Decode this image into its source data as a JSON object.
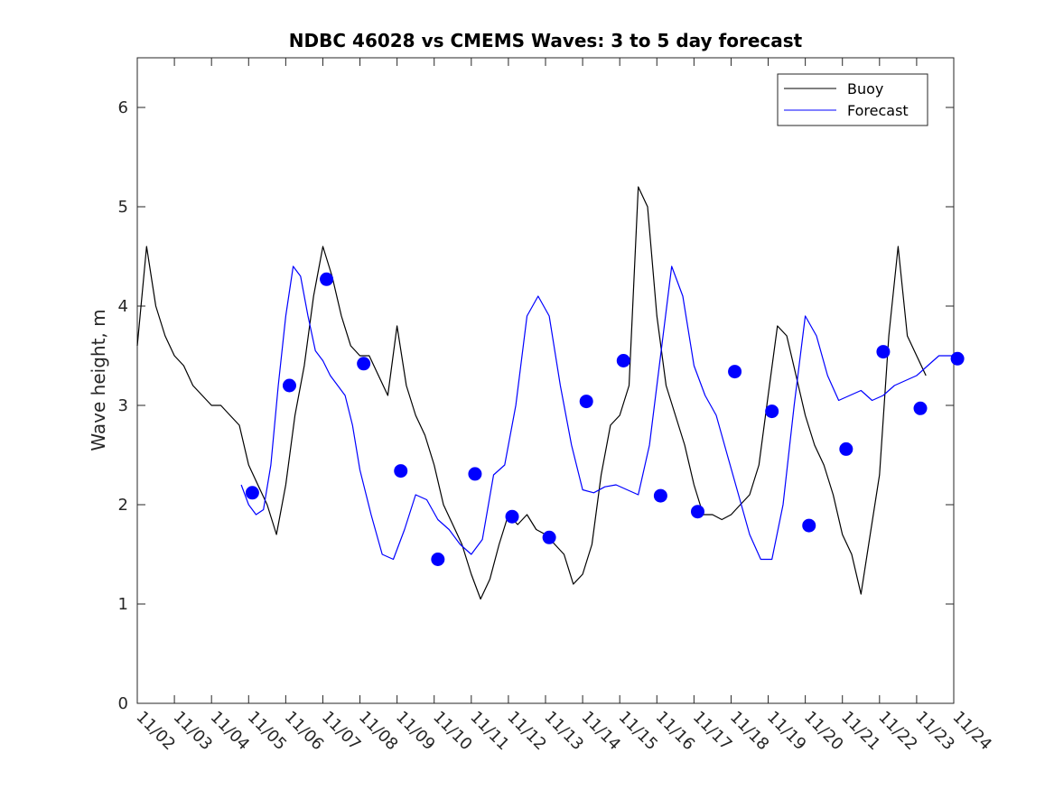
{
  "chart_data": {
    "type": "line",
    "title": "NDBC 46028 vs CMEMS Waves: 3 to 5 day forecast",
    "xlabel": "",
    "ylabel": "Wave height, m",
    "xlim": [
      0,
      22
    ],
    "ylim": [
      0,
      6.5
    ],
    "grid": false,
    "legend_position": "top-right",
    "x_tick_labels": [
      "11/02",
      "11/03",
      "11/04",
      "11/05",
      "11/06",
      "11/07",
      "11/08",
      "11/09",
      "11/10",
      "11/11",
      "11/12",
      "11/13",
      "11/14",
      "11/15",
      "11/16",
      "11/17",
      "11/18",
      "11/19",
      "11/20",
      "11/21",
      "11/22",
      "11/23",
      "11/24"
    ],
    "y_ticks": [
      0,
      1,
      2,
      3,
      4,
      5,
      6
    ],
    "legend": [
      {
        "name": "Buoy",
        "color": "#000000"
      },
      {
        "name": "Forecast",
        "color": "#0000ff"
      }
    ],
    "series": [
      {
        "name": "Buoy",
        "color": "#000000",
        "x": [
          0.0,
          0.25,
          0.5,
          0.75,
          1.0,
          1.25,
          1.5,
          1.75,
          2.0,
          2.25,
          2.5,
          2.75,
          3.0,
          3.25,
          3.5,
          3.75,
          4.0,
          4.25,
          4.5,
          4.75,
          5.0,
          5.25,
          5.5,
          5.75,
          6.0,
          6.25,
          6.5,
          6.75,
          7.0,
          7.25,
          7.5,
          7.75,
          8.0,
          8.25,
          8.5,
          8.75,
          9.0,
          9.25,
          9.5,
          9.75,
          10.0,
          10.25,
          10.5,
          10.75,
          11.0,
          11.25,
          11.5,
          11.75,
          12.0,
          12.25,
          12.5,
          12.75,
          13.0,
          13.25,
          13.5,
          13.75,
          14.0,
          14.25,
          14.5,
          14.75,
          15.0,
          15.25,
          15.5,
          15.75,
          16.0,
          16.25,
          16.5,
          16.75,
          17.0,
          17.25,
          17.5,
          17.75,
          18.0,
          18.25,
          18.5,
          18.75,
          19.0,
          19.25,
          19.5,
          19.75,
          20.0,
          20.25,
          20.5,
          20.75,
          21.0,
          21.25
        ],
        "y": [
          3.6,
          4.6,
          4.0,
          3.7,
          3.5,
          3.4,
          3.2,
          3.1,
          3.0,
          3.0,
          2.9,
          2.8,
          2.4,
          2.2,
          2.0,
          1.7,
          2.2,
          2.9,
          3.4,
          4.1,
          4.6,
          4.3,
          3.9,
          3.6,
          3.5,
          3.5,
          3.3,
          3.1,
          3.8,
          3.2,
          2.9,
          2.7,
          2.4,
          2.0,
          1.8,
          1.6,
          1.3,
          1.05,
          1.25,
          1.6,
          1.9,
          1.8,
          1.9,
          1.75,
          1.7,
          1.6,
          1.5,
          1.2,
          1.3,
          1.6,
          2.3,
          2.8,
          2.9,
          3.2,
          5.2,
          5.0,
          3.9,
          3.2,
          2.9,
          2.6,
          2.2,
          1.9,
          1.9,
          1.85,
          1.9,
          2.0,
          2.1,
          2.4,
          3.1,
          3.8,
          3.7,
          3.3,
          2.9,
          2.6,
          2.4,
          2.1,
          1.7,
          1.5,
          1.1,
          1.7,
          2.3,
          3.7,
          4.6,
          3.7,
          3.5,
          3.3
        ]
      },
      {
        "name": "Forecast",
        "color": "#0000ff",
        "x": [
          2.8,
          3.0,
          3.2,
          3.4,
          3.6,
          3.8,
          4.0,
          4.2,
          4.4,
          4.6,
          4.8,
          5.0,
          5.2,
          5.4,
          5.6,
          5.8,
          6.0,
          6.3,
          6.6,
          6.9,
          7.2,
          7.5,
          7.8,
          8.1,
          8.4,
          8.7,
          9.0,
          9.3,
          9.6,
          9.9,
          10.2,
          10.5,
          10.8,
          11.1,
          11.4,
          11.7,
          12.0,
          12.3,
          12.6,
          12.9,
          13.2,
          13.5,
          13.8,
          14.1,
          14.4,
          14.7,
          15.0,
          15.3,
          15.6,
          15.9,
          16.2,
          16.5,
          16.8,
          17.1,
          17.4,
          17.7,
          18.0,
          18.3,
          18.6,
          18.9,
          19.2,
          19.5,
          19.8,
          20.1,
          20.4,
          20.7,
          21.0,
          21.3,
          21.6,
          22.0
        ],
        "y": [
          2.2,
          2.0,
          1.9,
          1.95,
          2.4,
          3.2,
          3.9,
          4.4,
          4.3,
          3.9,
          3.55,
          3.45,
          3.3,
          3.2,
          3.1,
          2.8,
          2.35,
          1.9,
          1.5,
          1.45,
          1.75,
          2.1,
          2.05,
          1.85,
          1.75,
          1.6,
          1.5,
          1.65,
          2.3,
          2.4,
          3.0,
          3.9,
          4.1,
          3.9,
          3.2,
          2.6,
          2.15,
          2.12,
          2.18,
          2.2,
          2.15,
          2.1,
          2.6,
          3.5,
          4.4,
          4.1,
          3.4,
          3.1,
          2.9,
          2.5,
          2.1,
          1.7,
          1.45,
          1.45,
          2.0,
          3.0,
          3.9,
          3.7,
          3.3,
          3.05,
          3.1,
          3.15,
          3.05,
          3.1,
          3.2,
          3.25,
          3.3,
          3.4,
          3.5,
          3.5
        ]
      }
    ],
    "markers": {
      "name": "Forecast points",
      "color": "#0000ff",
      "x": [
        3.1,
        4.1,
        5.1,
        6.1,
        7.1,
        8.1,
        9.1,
        10.1,
        11.1,
        12.1,
        13.1,
        14.1,
        15.1,
        16.1,
        17.1,
        18.1,
        19.1,
        20.1,
        21.1,
        22.1
      ],
      "y": [
        2.12,
        3.2,
        4.27,
        3.42,
        2.34,
        1.45,
        2.31,
        1.88,
        1.67,
        3.04,
        3.45,
        2.09,
        1.93,
        3.34,
        2.94,
        1.79,
        2.56,
        3.54,
        2.97,
        3.47
      ]
    }
  }
}
